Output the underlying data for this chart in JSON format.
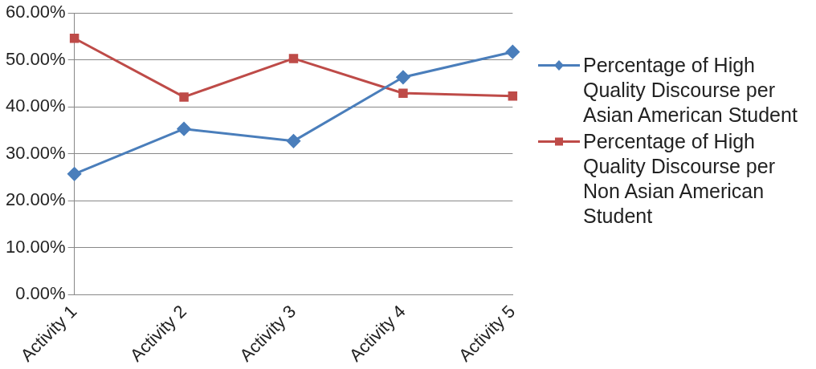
{
  "chart_data": {
    "type": "line",
    "categories": [
      "Activity 1",
      "Activity 2",
      "Activity 3",
      "Activity 4",
      "Activity 5"
    ],
    "series": [
      {
        "name": "Percentage of High Quality Discourse per Asian American Student",
        "color": "#4a7ebb",
        "marker": "diamond",
        "values": [
          25.7,
          35.3,
          32.7,
          46.3,
          51.7
        ]
      },
      {
        "name": "Percentage of High Quality Discourse per Non Asian American Student",
        "color": "#be4b48",
        "marker": "square",
        "values": [
          54.6,
          42.1,
          50.3,
          42.9,
          42.3
        ]
      }
    ],
    "ylim": [
      0,
      60
    ],
    "yticks": [
      {
        "value": 0,
        "label": "0.00%"
      },
      {
        "value": 10,
        "label": "10.00%"
      },
      {
        "value": 20,
        "label": "20.00%"
      },
      {
        "value": 30,
        "label": "30.00%"
      },
      {
        "value": 40,
        "label": "40.00%"
      },
      {
        "value": 50,
        "label": "50.00%"
      },
      {
        "value": 60,
        "label": "60.00%"
      }
    ],
    "grid": "y",
    "legend": "right",
    "line_style": "solid"
  }
}
